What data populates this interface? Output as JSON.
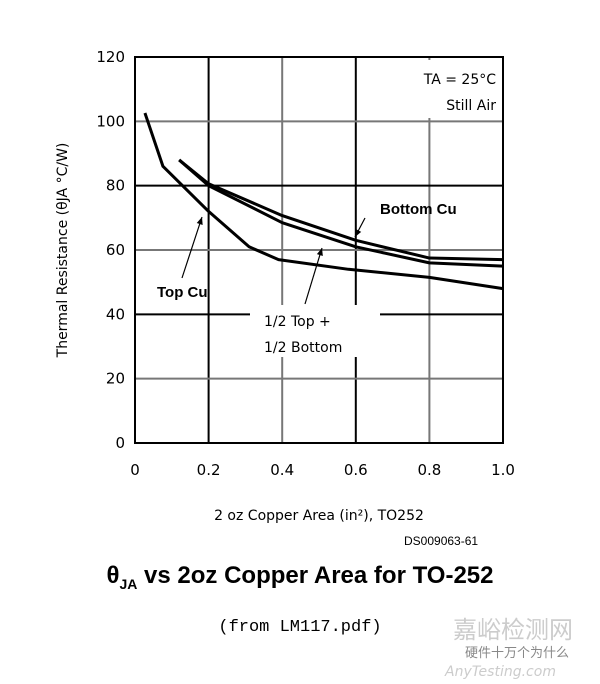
{
  "chart_data": {
    "type": "line",
    "xlabel": "2 oz Copper Area (in²), TO252",
    "ylabel": "Thermal Resistance (θJA °C/W)",
    "xlim": [
      0,
      1.0
    ],
    "ylim": [
      0,
      120
    ],
    "xticks": [
      "0",
      "0.2",
      "0.4",
      "0.6",
      "0.8",
      "1.0"
    ],
    "yticks": [
      "0",
      "20",
      "40",
      "60",
      "80",
      "100",
      "120"
    ],
    "grid": true,
    "annotation": {
      "line1": "TA = 25°C",
      "line2": "Still Air"
    },
    "series": [
      {
        "name": "Top Cu",
        "x": [
          0.027,
          0.076,
          0.2,
          0.31,
          0.39,
          0.58,
          0.8,
          1.0
        ],
        "y": [
          102.6,
          86,
          72,
          61,
          57,
          54,
          51.5,
          48
        ]
      },
      {
        "name": "Bottom Cu",
        "x": [
          0.12,
          0.2,
          0.4,
          0.6,
          0.8,
          1.0
        ],
        "y": [
          88,
          80.6,
          70.7,
          63,
          57.5,
          57
        ]
      },
      {
        "name": "1/2 Top + 1/2 Bottom",
        "x": [
          0.12,
          0.2,
          0.4,
          0.6,
          0.8,
          1.0
        ],
        "y": [
          88,
          80,
          68.5,
          61,
          56,
          55
        ]
      }
    ],
    "labels": {
      "top": "Top Cu",
      "bottom": "Bottom Cu",
      "half1": "1/2 Top +",
      "half2": "1/2 Bottom"
    }
  },
  "figure_id": "DS009063-61",
  "title_prefix": "θ",
  "title_sub": "JA",
  "title_rest": " vs 2oz Copper Area for TO-252",
  "source": "(from LM117.pdf)",
  "watermark": {
    "cn": "嘉峪检测网",
    "en": "AnyTesting.com",
    "account": "硬件十万个为什么"
  }
}
